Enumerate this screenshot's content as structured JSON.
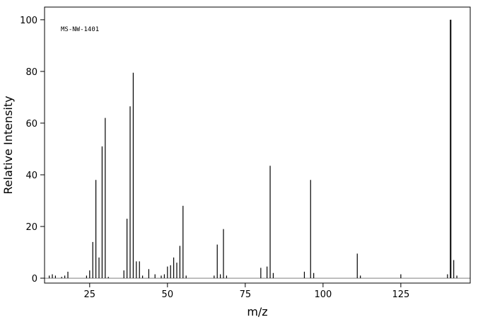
{
  "chart_data": {
    "type": "stem",
    "annotation": "MS-NW-1401",
    "x_label": "m/z",
    "y_label": "Relative Intensity",
    "color": "#000000",
    "x": [
      12,
      13,
      14,
      16,
      17,
      18,
      24,
      25,
      26,
      27,
      28,
      29,
      30,
      31,
      36,
      37,
      38,
      39,
      40,
      41,
      42,
      44,
      46,
      48,
      49,
      50,
      51,
      52,
      53,
      54,
      55,
      56,
      65,
      66,
      67,
      68,
      69,
      80,
      82,
      83,
      84,
      94,
      96,
      97,
      111,
      112,
      125,
      140,
      141,
      142,
      143
    ],
    "values": [
      1,
      1.5,
      1,
      0.5,
      1,
      2.5,
      1,
      3,
      14,
      38,
      8,
      51,
      62,
      0.5,
      3,
      23,
      66.5,
      79.5,
      6.5,
      6.5,
      1,
      3.5,
      1.5,
      1,
      1.5,
      4.5,
      5,
      8,
      6,
      12.5,
      28,
      1,
      1,
      13,
      1.5,
      19,
      1,
      4,
      4.5,
      43.5,
      2,
      2.5,
      38,
      2,
      9.5,
      1,
      1.5,
      1.5,
      100,
      7,
      1
    ],
    "xlim": [
      10.5,
      147.3
    ],
    "ylim": [
      -1.9,
      104.9
    ],
    "xticks": [
      25,
      50,
      75,
      100,
      125
    ],
    "yticks": [
      0,
      20,
      40,
      60,
      80,
      100
    ]
  }
}
